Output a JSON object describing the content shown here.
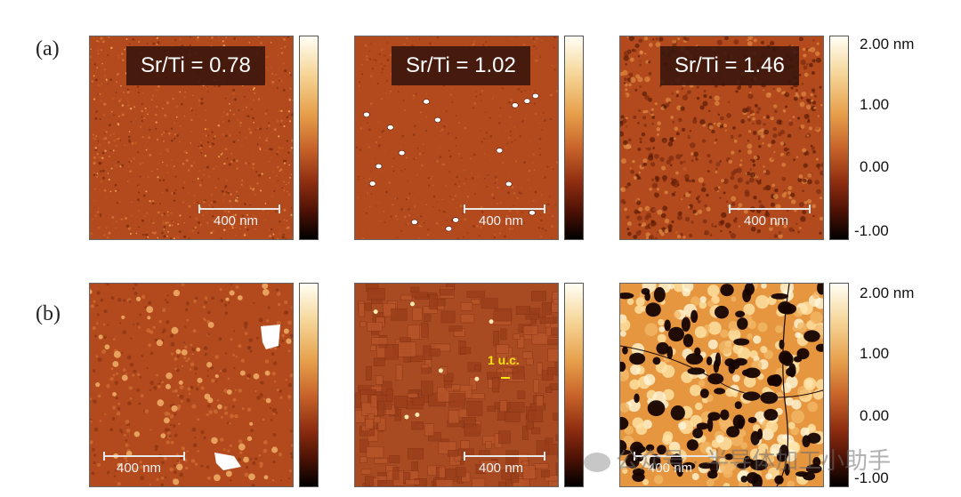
{
  "row_labels": [
    "(a)",
    "(b)"
  ],
  "ratio_labels": [
    "Sr/Ti = 0.78",
    "Sr/Ti = 1.02",
    "Sr/Ti = 1.46"
  ],
  "scale_bar": "400 nm",
  "uc_label": "1 u.c.",
  "colorbar": {
    "ticks": [
      "2.00 nm",
      "1.00",
      "0.00",
      "-1.00"
    ],
    "colors": [
      "#fffef5",
      "#f6d79a",
      "#e7a04b",
      "#c8642a",
      "#8e2d10",
      "#4e1205",
      "#000000"
    ]
  },
  "watermark": "公众号 · 半导体加工小助手",
  "palette": {
    "afm_base": "#b24a1d",
    "afm_dark": "#5a1606",
    "afm_light": "#f0b060",
    "afm_white": "#ffffff"
  }
}
